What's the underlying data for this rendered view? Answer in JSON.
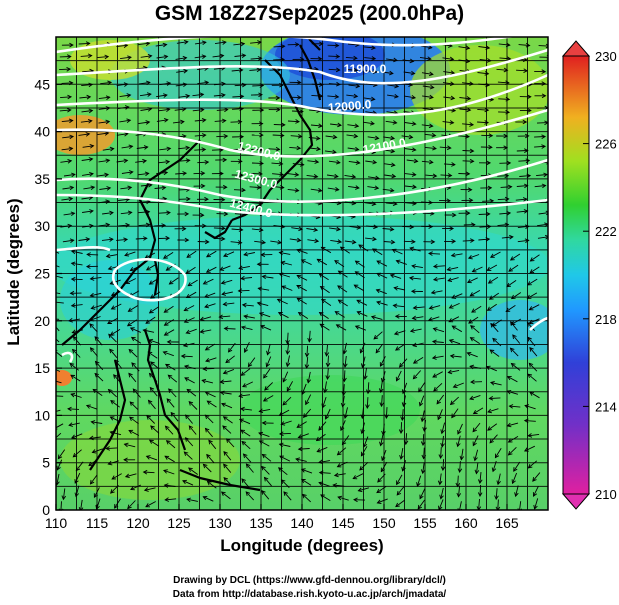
{
  "title": "GSM 18Z27Sep2025 (200.0hPa)",
  "x_axis": {
    "label": "Longitude (degrees)",
    "range": [
      110,
      170
    ],
    "ticks": [
      "110",
      "115",
      "120",
      "125",
      "130",
      "135",
      "140",
      "145",
      "150",
      "155",
      "160",
      "165"
    ]
  },
  "y_axis": {
    "label": "Latitude  (degrees)",
    "range": [
      0,
      50
    ],
    "ticks": [
      "0",
      "5",
      "10",
      "15",
      "20",
      "25",
      "30",
      "35",
      "40",
      "45"
    ]
  },
  "colorbar": {
    "ticks": [
      "210",
      "214",
      "218",
      "222",
      "226",
      "230"
    ],
    "range": [
      210,
      230
    ],
    "colors": [
      "#e020a0",
      "#3030d0",
      "#20a0ff",
      "#20d8c0",
      "#30d020",
      "#b0e020",
      "#f0a020",
      "#e02020"
    ]
  },
  "contour_labels": [
    "11900.0",
    "12000.0",
    "12100.0",
    "12200.0",
    "12300.0",
    "12400.0"
  ],
  "credits": {
    "drawing": "Drawing by DCL (https://www.gfd-dennou.org/library/dcl/)",
    "data": "Data from http://database.rish.kyoto-u.ac.jp/arch/jmadata/"
  },
  "chart_data": {
    "type": "heatmap",
    "title": "GSM 18Z27Sep2025 (200.0hPa)",
    "xlabel": "Longitude (degrees)",
    "ylabel": "Latitude  (degrees)",
    "xlim": [
      110,
      170
    ],
    "ylim": [
      0,
      50
    ],
    "colorbar_range": [
      210,
      230
    ],
    "grid": true,
    "contour_levels": [
      11900,
      12000,
      12100,
      12200,
      12300,
      12400
    ],
    "overlay": "streamlines"
  }
}
